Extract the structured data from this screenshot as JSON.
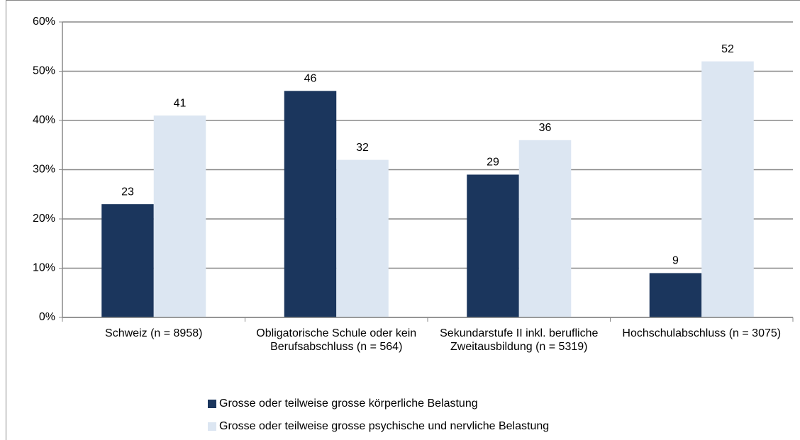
{
  "chart_data": {
    "type": "bar",
    "categories": [
      "Schweiz (n = 8958)",
      "Obligatorische Schule oder kein Berufsabschluss (n = 564)",
      "Sekundarstufe II inkl. berufliche Zweitausbildung  (n = 5319)",
      "Hochschulabschluss (n = 3075)"
    ],
    "series": [
      {
        "name": "Grosse oder teilweise grosse körperliche Belastung",
        "color": "#1b365d",
        "values": [
          23,
          46,
          29,
          9
        ]
      },
      {
        "name": "Grosse oder teilweise grosse psychische und nervliche Belastung",
        "color": "#dce6f2",
        "values": [
          41,
          32,
          36,
          52
        ]
      }
    ],
    "ylim": [
      0,
      60
    ],
    "yticks": [
      {
        "value": 0,
        "label": "0%"
      },
      {
        "value": 10,
        "label": "10%"
      },
      {
        "value": 20,
        "label": "20%"
      },
      {
        "value": 30,
        "label": "30%"
      },
      {
        "value": 40,
        "label": "40%"
      },
      {
        "value": 50,
        "label": "50%"
      },
      {
        "value": 60,
        "label": "60%"
      }
    ],
    "grid": true,
    "legend": "bottom"
  }
}
